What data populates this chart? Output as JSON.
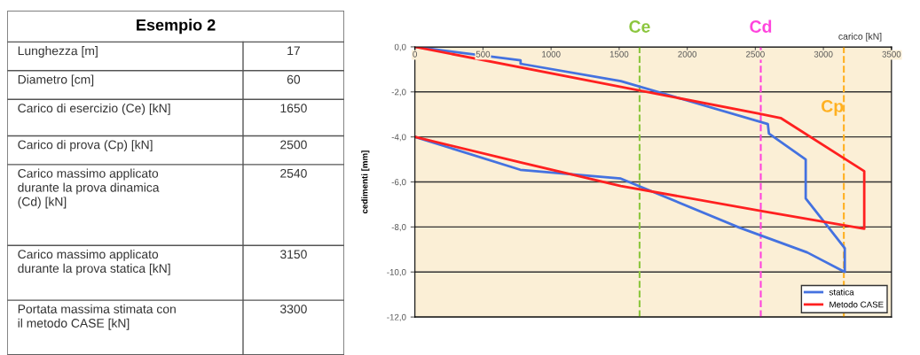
{
  "chart_data": [
    {
      "type": "other",
      "title": "Esempio 2",
      "categories": [
        "Lunghezza [m]",
        "Diametro [cm]",
        "Carico di esercizio (Ce) [kN]",
        "Carico di prova (Cp) [kN]",
        "Carico massimo applicato\ndurante la prova dinamica\n(Cd) [kN]",
        "Carico massimo applicato\ndurante la prova statica [kN]",
        "Portata massima stimata con\nil metodo CASE [kN]"
      ],
      "values": [
        17,
        60,
        1650,
        2500,
        2540,
        3150,
        3300
      ],
      "data_labels": true
    },
    {
      "type": "line",
      "xlabel": "carico [kN]",
      "ylabel": "cedimenti [mm]",
      "series": [
        {
          "name": "statica",
          "color": "#4472e0",
          "x": [
            0,
            776,
            776,
            1512,
            2592,
            2600,
            2870,
            2870,
            3157,
            3157,
            2881,
            2379,
            1512,
            774,
            0
          ],
          "values": [
            0,
            -0.6,
            -0.75,
            -1.52,
            -3.43,
            -3.85,
            -5.0,
            -6.73,
            -8.94,
            -10.0,
            -9.13,
            -8.02,
            -5.85,
            -5.46,
            -4.0
          ]
        },
        {
          "name": "Metodo CASE",
          "color": "#ff2020",
          "x": [
            0,
            2511,
            2686,
            3300,
            3300,
            2555,
            1512,
            774,
            0
          ],
          "values": [
            0,
            -2.95,
            -3.16,
            -5.52,
            -8.08,
            -7.3,
            -6.18,
            -5.13,
            -4.0
          ]
        }
      ],
      "xlim": [
        0,
        3500
      ],
      "xticks": [
        0,
        500,
        1000,
        1500,
        2000,
        2500,
        3000,
        3500
      ],
      "ylim": [
        -12,
        0
      ],
      "yticks": [
        {
          "value": 0,
          "label": "0,0"
        },
        {
          "value": -2,
          "label": "-2,0"
        },
        {
          "value": -4,
          "label": "-4,0"
        },
        {
          "value": -6,
          "label": "-6,0"
        },
        {
          "value": -8,
          "label": "-8,0"
        },
        {
          "value": -10,
          "label": "-10,0"
        },
        {
          "value": -12,
          "label": "-12,0"
        }
      ],
      "ref_lines": [
        {
          "axis": "x",
          "value": 1650,
          "label": "Ce",
          "color": "#8cc63f",
          "line_style": "dashed"
        },
        {
          "axis": "x",
          "value": 2540,
          "label": "Cd",
          "color": "#ff44dd",
          "line_style": "dashed"
        },
        {
          "axis": "x",
          "value": 3150,
          "label": "Cp",
          "color": "#ffb020",
          "line_style": "dashed"
        }
      ],
      "grid": "y",
      "legend": "bottom right",
      "marker": "none",
      "line_style": "solid"
    }
  ]
}
